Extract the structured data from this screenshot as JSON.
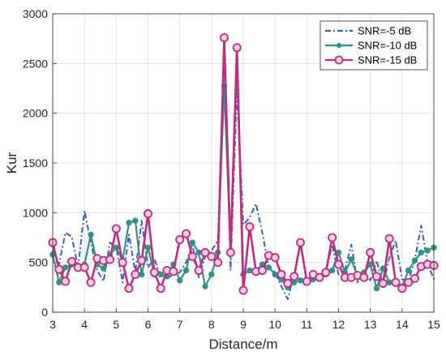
{
  "chart_data": {
    "type": "line",
    "xlabel": "Distance/m",
    "ylabel": "Kur",
    "xlim": [
      3,
      15
    ],
    "ylim": [
      0,
      3000
    ],
    "xticks": [
      3,
      4,
      5,
      6,
      7,
      8,
      9,
      10,
      11,
      12,
      13,
      14,
      15
    ],
    "yticks": [
      0,
      500,
      1000,
      1500,
      2000,
      2500,
      3000
    ],
    "grid": true,
    "legend_position": "top-right",
    "x": [
      3.0,
      3.2,
      3.4,
      3.6,
      3.8,
      4.0,
      4.2,
      4.4,
      4.6,
      4.8,
      5.0,
      5.2,
      5.4,
      5.6,
      5.8,
      6.0,
      6.2,
      6.4,
      6.6,
      6.8,
      7.0,
      7.2,
      7.4,
      7.6,
      7.8,
      8.0,
      8.2,
      8.4,
      8.6,
      8.8,
      9.0,
      9.2,
      9.4,
      9.6,
      9.8,
      10.0,
      10.2,
      10.4,
      10.6,
      10.8,
      11.0,
      11.2,
      11.4,
      11.6,
      11.8,
      12.0,
      12.2,
      12.4,
      12.6,
      12.8,
      13.0,
      13.2,
      13.4,
      13.6,
      13.8,
      14.0,
      14.2,
      14.4,
      14.6,
      14.8,
      15.0
    ],
    "series": [
      {
        "name": "SNR=-5 dB",
        "color": "#3a5fb5",
        "style": "dashdot",
        "marker": "none",
        "values": [
          620,
          480,
          800,
          760,
          450,
          1020,
          700,
          420,
          310,
          700,
          660,
          300,
          780,
          400,
          920,
          450,
          540,
          360,
          340,
          380,
          400,
          500,
          680,
          350,
          560,
          620,
          720,
          2640,
          420,
          2240,
          880,
          950,
          1090,
          800,
          450,
          400,
          260,
          130,
          380,
          320,
          290,
          400,
          310,
          400,
          680,
          380,
          420,
          680,
          300,
          400,
          320,
          520,
          270,
          550,
          720,
          330,
          320,
          520,
          870,
          500,
          330
        ]
      },
      {
        "name": "SNR=-10 dB",
        "color": "#2e9485",
        "style": "solid",
        "marker": "filled-circle",
        "values": [
          580,
          300,
          450,
          480,
          450,
          480,
          780,
          480,
          440,
          580,
          650,
          520,
          900,
          920,
          380,
          650,
          380,
          380,
          360,
          480,
          320,
          420,
          700,
          600,
          260,
          380,
          600,
          2270,
          620,
          2660,
          380,
          420,
          420,
          480,
          450,
          380,
          330,
          250,
          300,
          320,
          300,
          330,
          360,
          380,
          420,
          600,
          400,
          530,
          360,
          400,
          480,
          240,
          440,
          300,
          290,
          260,
          420,
          520,
          600,
          620,
          650
        ]
      },
      {
        "name": "SNR=-15 dB",
        "color": "#c42a82",
        "style": "solid",
        "marker": "open-circle",
        "values": [
          700,
          430,
          310,
          510,
          450,
          450,
          300,
          540,
          520,
          530,
          840,
          500,
          240,
          380,
          520,
          990,
          400,
          240,
          420,
          410,
          730,
          790,
          560,
          420,
          600,
          560,
          500,
          2760,
          600,
          2660,
          220,
          860,
          410,
          420,
          570,
          550,
          380,
          290,
          360,
          700,
          310,
          380,
          350,
          400,
          750,
          480,
          350,
          350,
          370,
          350,
          600,
          360,
          290,
          740,
          300,
          240,
          300,
          340,
          460,
          480,
          470
        ]
      }
    ]
  }
}
